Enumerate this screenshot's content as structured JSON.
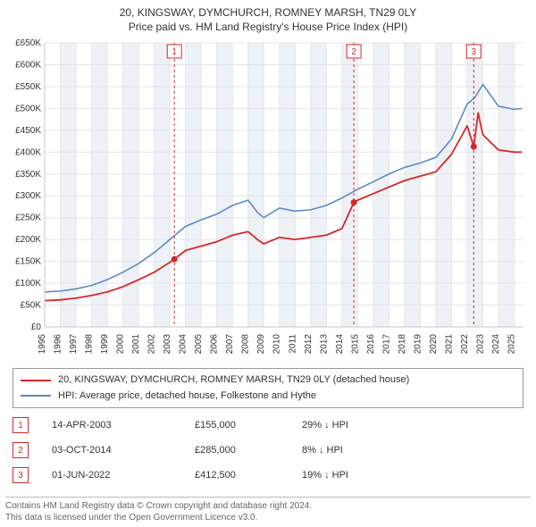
{
  "title": {
    "line1": "20, KINGSWAY, DYMCHURCH, ROMNEY MARSH, TN29 0LY",
    "line2": "Price paid vs. HM Land Registry's House Price Index (HPI)"
  },
  "chart": {
    "type": "line",
    "background_color": "#ffffff",
    "grid_color": "#e5e5e5",
    "grid_color_bold": "#c9c9c9",
    "band_color": "#eef2f7",
    "axis_color": "#888888",
    "text_color": "#333333",
    "label_fontsize": 10,
    "ylim": [
      0,
      650000
    ],
    "ytick_step": 50000,
    "yticks": [
      "£0",
      "£50K",
      "£100K",
      "£150K",
      "£200K",
      "£250K",
      "£300K",
      "£350K",
      "£400K",
      "£450K",
      "£500K",
      "£550K",
      "£600K",
      "£650K"
    ],
    "x_start_year": 1995,
    "x_end_year": 2025.6,
    "xticks": [
      1995,
      1996,
      1997,
      1998,
      1999,
      2000,
      2001,
      2002,
      2003,
      2004,
      2005,
      2006,
      2007,
      2008,
      2009,
      2010,
      2011,
      2012,
      2013,
      2014,
      2015,
      2016,
      2017,
      2018,
      2019,
      2020,
      2021,
      2022,
      2023,
      2024,
      2025
    ],
    "series": [
      {
        "key": "property",
        "color": "#d62728",
        "width": 1.8,
        "points": [
          [
            1995.0,
            60000
          ],
          [
            1996.0,
            62000
          ],
          [
            1997.0,
            66000
          ],
          [
            1998.0,
            72000
          ],
          [
            1999.0,
            80000
          ],
          [
            2000.0,
            92000
          ],
          [
            2001.0,
            108000
          ],
          [
            2002.0,
            125000
          ],
          [
            2003.0,
            148000
          ],
          [
            2003.29,
            155000
          ],
          [
            2004.0,
            175000
          ],
          [
            2005.0,
            185000
          ],
          [
            2006.0,
            195000
          ],
          [
            2007.0,
            210000
          ],
          [
            2008.0,
            218000
          ],
          [
            2008.6,
            200000
          ],
          [
            2009.0,
            190000
          ],
          [
            2010.0,
            205000
          ],
          [
            2011.0,
            200000
          ],
          [
            2012.0,
            205000
          ],
          [
            2013.0,
            210000
          ],
          [
            2014.0,
            225000
          ],
          [
            2014.76,
            285000
          ],
          [
            2015.0,
            290000
          ],
          [
            2016.0,
            305000
          ],
          [
            2017.0,
            320000
          ],
          [
            2018.0,
            335000
          ],
          [
            2019.0,
            345000
          ],
          [
            2020.0,
            355000
          ],
          [
            2021.0,
            395000
          ],
          [
            2022.0,
            460000
          ],
          [
            2022.42,
            412500
          ],
          [
            2022.7,
            490000
          ],
          [
            2023.0,
            440000
          ],
          [
            2024.0,
            405000
          ],
          [
            2025.0,
            400000
          ],
          [
            2025.5,
            400000
          ]
        ]
      },
      {
        "key": "hpi",
        "color": "#5b8bc6",
        "width": 1.6,
        "points": [
          [
            1995.0,
            80000
          ],
          [
            1996.0,
            82000
          ],
          [
            1997.0,
            87000
          ],
          [
            1998.0,
            95000
          ],
          [
            1999.0,
            108000
          ],
          [
            2000.0,
            125000
          ],
          [
            2001.0,
            145000
          ],
          [
            2002.0,
            170000
          ],
          [
            2003.0,
            200000
          ],
          [
            2004.0,
            230000
          ],
          [
            2005.0,
            245000
          ],
          [
            2006.0,
            258000
          ],
          [
            2007.0,
            278000
          ],
          [
            2008.0,
            290000
          ],
          [
            2008.6,
            262000
          ],
          [
            2009.0,
            250000
          ],
          [
            2010.0,
            272000
          ],
          [
            2011.0,
            265000
          ],
          [
            2012.0,
            268000
          ],
          [
            2013.0,
            278000
          ],
          [
            2014.0,
            295000
          ],
          [
            2015.0,
            315000
          ],
          [
            2016.0,
            332000
          ],
          [
            2017.0,
            350000
          ],
          [
            2018.0,
            365000
          ],
          [
            2019.0,
            375000
          ],
          [
            2020.0,
            388000
          ],
          [
            2021.0,
            430000
          ],
          [
            2022.0,
            510000
          ],
          [
            2022.5,
            525000
          ],
          [
            2023.0,
            555000
          ],
          [
            2023.5,
            530000
          ],
          [
            2024.0,
            505000
          ],
          [
            2025.0,
            498000
          ],
          [
            2025.5,
            500000
          ]
        ]
      }
    ],
    "sale_markers": [
      {
        "n": "1",
        "year": 2003.29,
        "value": 155000
      },
      {
        "n": "2",
        "year": 2014.76,
        "value": 285000
      },
      {
        "n": "3",
        "year": 2022.42,
        "value": 412500
      }
    ],
    "marker_color": "#d62728",
    "marker_line_dash": "3,3"
  },
  "legend": {
    "items": [
      {
        "color": "#d62728",
        "label": "20, KINGSWAY, DYMCHURCH, ROMNEY MARSH, TN29 0LY (detached house)"
      },
      {
        "color": "#5b8bc6",
        "label": "HPI: Average price, detached house, Folkestone and Hythe"
      }
    ]
  },
  "sales": [
    {
      "n": "1",
      "date": "14-APR-2003",
      "price": "£155,000",
      "diff": "29% ↓ HPI"
    },
    {
      "n": "2",
      "date": "03-OCT-2014",
      "price": "£285,000",
      "diff": "8% ↓ HPI"
    },
    {
      "n": "3",
      "date": "01-JUN-2022",
      "price": "£412,500",
      "diff": "19% ↓ HPI"
    }
  ],
  "footer": {
    "line1": "Contains HM Land Registry data © Crown copyright and database right 2024.",
    "line2": "This data is licensed under the Open Government Licence v3.0."
  }
}
